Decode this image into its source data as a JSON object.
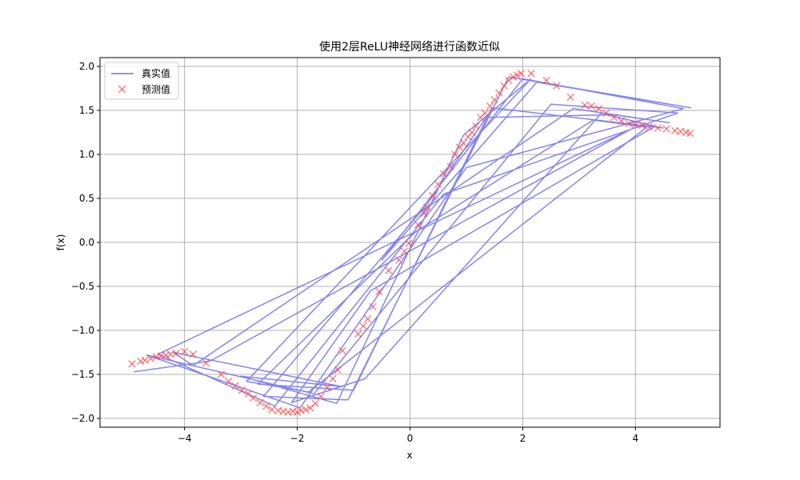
{
  "chart_data": {
    "type": "line+scatter",
    "title": "使用2层ReLU神经网络进行函数近似",
    "xlabel": "x",
    "ylabel": "f(x)",
    "xlim": [
      -5.5,
      5.5
    ],
    "ylim": [
      -2.1,
      2.1
    ],
    "xticks": [
      -4,
      -2,
      0,
      2,
      4
    ],
    "xtick_labels": [
      "−4",
      "−2",
      "0",
      "2",
      "4"
    ],
    "yticks": [
      -2.0,
      -1.5,
      -1.0,
      -0.5,
      0.0,
      0.5,
      1.0,
      1.5,
      2.0
    ],
    "ytick_labels": [
      "−2.0",
      "−1.5",
      "−1.0",
      "−0.5",
      "0.0",
      "0.5",
      "1.0",
      "1.5",
      "2.0"
    ],
    "grid": true,
    "legend_position": "upper-left",
    "series": [
      {
        "name": "真实值",
        "kind": "line",
        "color": "#7070f0",
        "x": [
          -4.9,
          -3.55,
          3.9,
          -4.47,
          -2.4,
          0.6,
          4.75,
          2.5,
          -1.7,
          -4.67,
          -1.95,
          1.0,
          4.85,
          2.0,
          -0.5,
          2.25,
          4.98,
          1.75,
          -1.1,
          -2.6,
          0.3,
          1.35,
          3.5,
          4.35,
          -0.7,
          -2.1,
          -0.8,
          3.4,
          4.6,
          2.9,
          -3.85,
          -4.2,
          -1.2,
          -3.0,
          -1.3,
          0.95,
          2.15,
          -2.9,
          -1.8,
          4.2,
          3.25,
          0.1,
          -2.7,
          -1.0,
          1.45,
          4.5
        ],
        "y": [
          -1.47,
          -1.35,
          1.28,
          -1.27,
          -1.86,
          0.55,
          1.47,
          1.57,
          -1.72,
          -1.28,
          -1.88,
          0.85,
          1.52,
          1.86,
          -0.2,
          1.82,
          1.53,
          1.88,
          -1.79,
          -1.75,
          0.43,
          1.42,
          1.45,
          1.32,
          -0.55,
          -1.82,
          -1.55,
          1.47,
          1.36,
          1.52,
          -1.4,
          -1.25,
          -1.64,
          -1.52,
          -1.83,
          1.22,
          1.86,
          -1.58,
          -1.7,
          1.31,
          1.39,
          0.12,
          -1.61,
          -1.68,
          1.53,
          1.3
        ]
      },
      {
        "name": "预测值",
        "kind": "scatter",
        "marker": "x",
        "color": "#ff4040",
        "x": [
          -4.93,
          -4.78,
          -4.7,
          -4.6,
          -4.5,
          -4.42,
          -4.33,
          -4.25,
          -4.15,
          -4.0,
          -3.85,
          -3.62,
          -3.35,
          -3.22,
          -3.1,
          -2.98,
          -2.87,
          -2.78,
          -2.66,
          -2.55,
          -2.45,
          -2.34,
          -2.25,
          -2.16,
          -2.08,
          -2.0,
          -1.93,
          -1.85,
          -1.77,
          -1.68,
          -1.58,
          -1.47,
          -1.37,
          -1.28,
          -1.2,
          -0.92,
          -0.83,
          -0.75,
          -0.66,
          -0.55,
          -0.38,
          -0.2,
          -0.1,
          -0.02,
          0.14,
          0.25,
          0.3,
          0.4,
          0.5,
          0.6,
          0.72,
          0.8,
          0.88,
          0.95,
          1.03,
          1.1,
          1.17,
          1.25,
          1.33,
          1.42,
          1.5,
          1.58,
          1.67,
          1.75,
          1.83,
          1.9,
          1.97,
          2.15,
          2.42,
          2.6,
          2.85,
          3.1,
          3.22,
          3.35,
          3.48,
          3.62,
          3.75,
          3.88,
          4.0,
          4.12,
          4.25,
          4.4,
          4.55,
          4.7,
          4.8,
          4.9,
          4.97
        ],
        "y": [
          -1.38,
          -1.35,
          -1.34,
          -1.32,
          -1.3,
          -1.29,
          -1.28,
          -1.27,
          -1.26,
          -1.24,
          -1.27,
          -1.37,
          -1.5,
          -1.58,
          -1.63,
          -1.68,
          -1.72,
          -1.77,
          -1.82,
          -1.86,
          -1.9,
          -1.91,
          -1.92,
          -1.93,
          -1.92,
          -1.93,
          -1.91,
          -1.9,
          -1.88,
          -1.83,
          -1.75,
          -1.65,
          -1.55,
          -1.45,
          -1.23,
          -1.04,
          -0.95,
          -0.87,
          -0.73,
          -0.56,
          -0.32,
          -0.2,
          -0.1,
          -0.01,
          0.2,
          0.33,
          0.4,
          0.53,
          0.66,
          0.78,
          0.86,
          1.0,
          1.08,
          1.13,
          1.2,
          1.25,
          1.32,
          1.42,
          1.47,
          1.55,
          1.62,
          1.7,
          1.78,
          1.84,
          1.88,
          1.9,
          1.92,
          1.92,
          1.84,
          1.78,
          1.65,
          1.56,
          1.55,
          1.52,
          1.47,
          1.42,
          1.38,
          1.35,
          1.34,
          1.33,
          1.31,
          1.3,
          1.29,
          1.27,
          1.26,
          1.25,
          1.24
        ]
      }
    ]
  }
}
